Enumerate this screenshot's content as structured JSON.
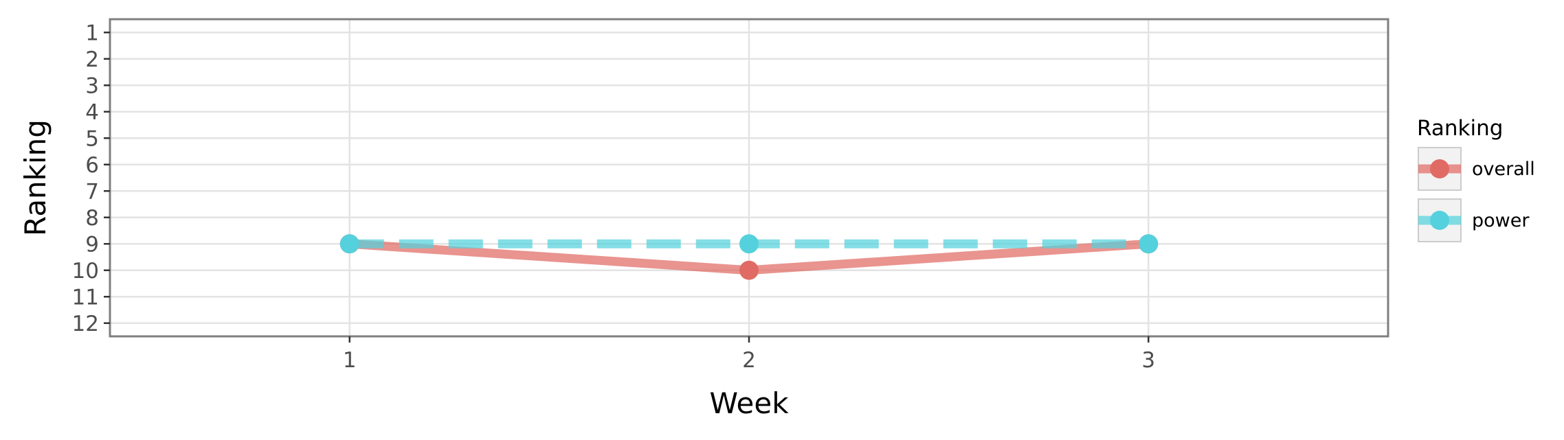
{
  "chart_data": {
    "type": "line",
    "xlabel": "Week",
    "ylabel": "Ranking",
    "x": [
      1,
      2,
      3
    ],
    "xlim": [
      0.4,
      3.6
    ],
    "ylim": [
      12.5,
      0.5
    ],
    "y_reversed": true,
    "y_ticks": [
      1,
      2,
      3,
      4,
      5,
      6,
      7,
      8,
      9,
      10,
      11,
      12
    ],
    "grid": true,
    "legend": {
      "title": "Ranking",
      "position": "right"
    },
    "series": [
      {
        "name": "overall",
        "values": [
          9,
          10,
          9
        ],
        "color": "#e06b64",
        "line_style": "solid"
      },
      {
        "name": "power",
        "values": [
          9,
          9,
          9
        ],
        "color": "#54d1dc",
        "line_style": "dashed"
      }
    ]
  }
}
